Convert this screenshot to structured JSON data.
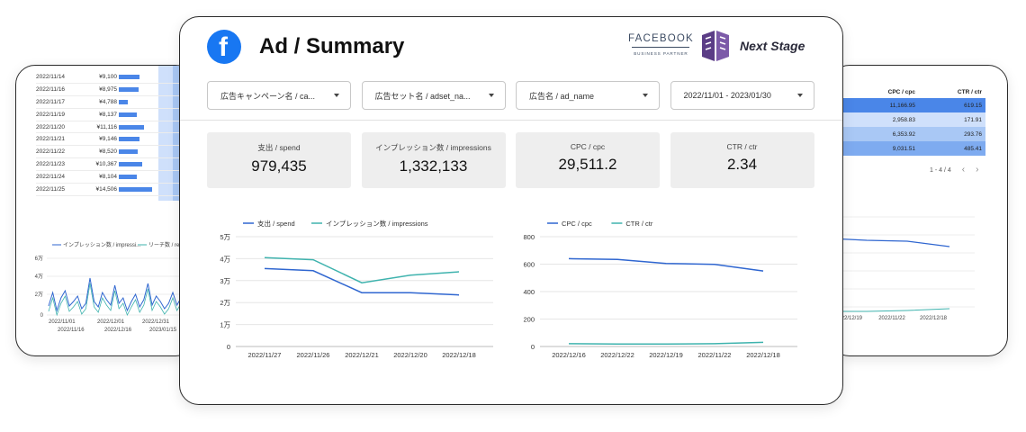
{
  "colors": {
    "spend": "#2f66d0",
    "impressions": "#3fb3ae",
    "blue_bar": "#4a86e8"
  },
  "left_card": {
    "rows": [
      {
        "date": "2022/11/14",
        "value": "¥9,100",
        "bar": 0.5
      },
      {
        "date": "2022/11/16",
        "value": "¥8,975",
        "bar": 0.48
      },
      {
        "date": "2022/11/17",
        "value": "¥4,788",
        "bar": 0.22
      },
      {
        "date": "2022/11/19",
        "value": "¥8,137",
        "bar": 0.44
      },
      {
        "date": "2022/11/20",
        "value": "¥11,116",
        "bar": 0.62
      },
      {
        "date": "2022/11/21",
        "value": "¥9,146",
        "bar": 0.5
      },
      {
        "date": "2022/11/22",
        "value": "¥8,520",
        "bar": 0.46
      },
      {
        "date": "2022/11/23",
        "value": "¥10,367",
        "bar": 0.58
      },
      {
        "date": "2022/11/24",
        "value": "¥8,104",
        "bar": 0.44
      },
      {
        "date": "2022/11/25",
        "value": "¥14,506",
        "bar": 0.82
      }
    ],
    "legend": [
      "インプレッション数 / impressi...",
      "リーチ数 / rea"
    ],
    "y_ticks": [
      "6万",
      "4万",
      "2万",
      "0"
    ],
    "x_ticks_top": [
      "2022/11/01",
      "2022/12/01",
      "2022/12/31"
    ],
    "x_ticks_bottom": [
      "2022/11/16",
      "2022/12/16",
      "2023/01/15"
    ]
  },
  "right_card": {
    "header": [
      "CPC / cpc",
      "CTR / ctr"
    ],
    "rows": [
      {
        "cpc": "11,166.95",
        "ctr": "619.15"
      },
      {
        "cpc": "2,958.83",
        "ctr": "171.91"
      },
      {
        "cpc": "6,353.92",
        "ctr": "293.76"
      },
      {
        "cpc": "9,031.51",
        "ctr": "485.41"
      }
    ],
    "pager": "1 - 4 / 4",
    "x_ticks": [
      "2022/12/19",
      "2022/11/22",
      "2022/12/18"
    ]
  },
  "main": {
    "title": "Ad / Summary",
    "fb_letter": "f",
    "partner_line1": "FACEBOOK",
    "partner_line2": "BUSINESS PARTNER",
    "brand": "Next Stage",
    "filters": [
      "広告キャンペーン名 / ca...",
      "広告セット名 / adset_na...",
      "広告名 / ad_name",
      "2022/11/01 - 2023/01/30"
    ],
    "kpis": [
      {
        "label": "支出 / spend",
        "value": "979,435"
      },
      {
        "label": "インプレッション数 / impressions",
        "value": "1,332,133"
      },
      {
        "label": "CPC / cpc",
        "value": "29,511.2"
      },
      {
        "label": "CTR / ctr",
        "value": "2.34"
      }
    ]
  },
  "chart_data": [
    {
      "type": "line",
      "x": [
        "2022/11/27",
        "2022/11/26",
        "2022/12/21",
        "2022/12/20",
        "2022/12/18"
      ],
      "series": [
        {
          "name": "支出 / spend",
          "values": [
            35500,
            34500,
            24500,
            24500,
            23500
          ]
        },
        {
          "name": "インプレッション数 / impressions",
          "values": [
            40500,
            39500,
            29000,
            32500,
            34000
          ]
        }
      ],
      "y_ticks": [
        "5万",
        "4万",
        "3万",
        "2万",
        "1万",
        "0"
      ],
      "ylim": [
        0,
        50000
      ],
      "grid": true,
      "legend": "top-left"
    },
    {
      "type": "line",
      "x": [
        "2022/12/16",
        "2022/12/22",
        "2022/12/19",
        "2022/11/22",
        "2022/12/18"
      ],
      "series": [
        {
          "name": "CPC / cpc",
          "values": [
            640,
            635,
            605,
            598,
            550
          ]
        },
        {
          "name": "CTR / ctr",
          "values": [
            20,
            18,
            18,
            20,
            30
          ]
        }
      ],
      "y_ticks": [
        "800",
        "600",
        "400",
        "200",
        "0"
      ],
      "ylim": [
        0,
        800
      ],
      "grid": true,
      "legend": "top-left"
    }
  ]
}
